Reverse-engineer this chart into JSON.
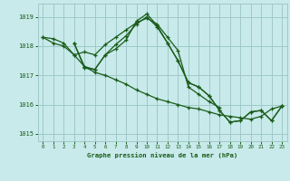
{
  "title": "Graphe pression niveau de la mer (hPa)",
  "background_color": "#c8eaea",
  "grid_color": "#a0c8c8",
  "line_color": "#1a5c1a",
  "xlim": [
    -0.5,
    23.5
  ],
  "ylim": [
    1014.75,
    1019.45
  ],
  "yticks": [
    1015,
    1016,
    1017,
    1018,
    1019
  ],
  "xticks": [
    0,
    1,
    2,
    3,
    4,
    5,
    6,
    7,
    8,
    9,
    10,
    11,
    12,
    13,
    14,
    15,
    16,
    17,
    18,
    19,
    20,
    21,
    22,
    23
  ],
  "series": [
    {
      "x": [
        0,
        1,
        2,
        3,
        4,
        5,
        6,
        7,
        8,
        9,
        10,
        11,
        12,
        13,
        14,
        15,
        16,
        17
      ],
      "y": [
        1018.3,
        1018.25,
        1018.1,
        1017.7,
        1017.8,
        1017.7,
        1018.05,
        1018.3,
        1018.55,
        1018.8,
        1018.95,
        1018.75,
        1018.3,
        1017.85,
        1016.6,
        1016.35,
        1016.1,
        1015.9
      ]
    },
    {
      "x": [
        0,
        1,
        2,
        3,
        4,
        5,
        6,
        7,
        8,
        9,
        10,
        11,
        12,
        13,
        14,
        15,
        16,
        17,
        18,
        19,
        20,
        21,
        22,
        23
      ],
      "y": [
        1018.3,
        1018.1,
        1018.0,
        1017.7,
        1017.3,
        1017.1,
        1017.0,
        1016.85,
        1016.7,
        1016.5,
        1016.35,
        1016.2,
        1016.1,
        1016.0,
        1015.9,
        1015.85,
        1015.75,
        1015.65,
        1015.6,
        1015.55,
        1015.5,
        1015.6,
        1015.85,
        1015.95
      ]
    },
    {
      "x": [
        3,
        4,
        5,
        6,
        7,
        8,
        9,
        10,
        11,
        12,
        13,
        14,
        15,
        16,
        17,
        18,
        19,
        20,
        21,
        22,
        23
      ],
      "y": [
        1018.1,
        1017.3,
        1017.2,
        1017.7,
        1017.9,
        1018.2,
        1018.85,
        1019.1,
        1018.7,
        1018.1,
        1017.5,
        1016.75,
        1016.6,
        1016.3,
        1015.8,
        1015.4,
        1015.45,
        1015.75,
        1015.8,
        1015.45,
        1015.95
      ]
    },
    {
      "x": [
        3,
        4,
        5,
        6,
        7,
        8,
        9,
        10,
        11,
        12,
        13,
        14,
        15,
        16,
        17,
        18,
        19,
        20,
        21,
        22,
        23
      ],
      "y": [
        1018.1,
        1017.25,
        1017.2,
        1017.7,
        1018.05,
        1018.35,
        1018.75,
        1019.0,
        1018.65,
        1018.1,
        1017.5,
        1016.75,
        1016.6,
        1016.3,
        1015.8,
        1015.4,
        1015.45,
        1015.75,
        1015.8,
        1015.45,
        1015.95
      ]
    }
  ]
}
